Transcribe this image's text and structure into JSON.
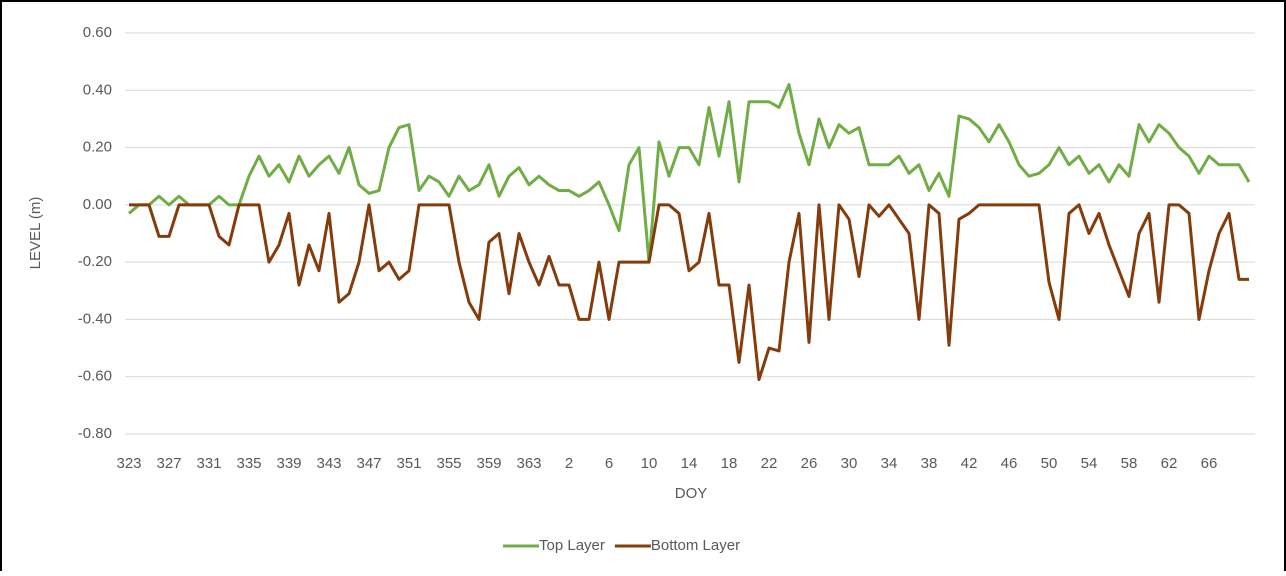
{
  "chart_data": {
    "type": "line",
    "x_label": "DOY",
    "y_label": "LEVEL (m)",
    "categories": [
      "323",
      null,
      null,
      null,
      "327",
      null,
      null,
      null,
      "331",
      null,
      null,
      null,
      "335",
      null,
      null,
      null,
      "339",
      null,
      null,
      null,
      "343",
      null,
      null,
      null,
      "347",
      null,
      null,
      null,
      "351",
      null,
      null,
      null,
      "355",
      null,
      null,
      null,
      "359",
      null,
      null,
      null,
      "363",
      null,
      null,
      null,
      "2",
      null,
      null,
      null,
      "6",
      null,
      null,
      null,
      "10",
      null,
      null,
      null,
      "14",
      null,
      null,
      null,
      "18",
      null,
      null,
      null,
      "22",
      null,
      null,
      null,
      "26",
      null,
      null,
      null,
      "30",
      null,
      null,
      null,
      "34",
      null,
      null,
      null,
      "38",
      null,
      null,
      null,
      "42",
      null,
      null,
      null,
      "46",
      null,
      null,
      null,
      "50",
      null,
      null,
      null,
      "54",
      null,
      null,
      null,
      "58",
      null,
      null,
      null,
      "62",
      null,
      null,
      null,
      "66",
      null,
      null,
      null,
      null
    ],
    "series": [
      {
        "name": "Top Layer",
        "color": "#70ad47",
        "values": [
          -0.03,
          0,
          0,
          0.03,
          0,
          0.03,
          0,
          0,
          0,
          0.03,
          0,
          0,
          0.1,
          0.17,
          0.1,
          0.14,
          0.08,
          0.17,
          0.1,
          0.14,
          0.17,
          0.11,
          0.2,
          0.07,
          0.04,
          0.05,
          0.2,
          0.27,
          0.28,
          0.05,
          0.1,
          0.08,
          0.03,
          0.1,
          0.05,
          0.07,
          0.14,
          0.03,
          0.1,
          0.13,
          0.07,
          0.1,
          0.07,
          0.05,
          0.05,
          0.03,
          0.05,
          0.08,
          0,
          -0.09,
          0.14,
          0.2,
          -0.2,
          0.22,
          0.1,
          0.2,
          0.2,
          0.14,
          0.34,
          0.17,
          0.36,
          0.08,
          0.36,
          0.36,
          0.36,
          0.34,
          0.42,
          0.25,
          0.14,
          0.3,
          0.2,
          0.28,
          0.25,
          0.27,
          0.14,
          0.14,
          0.14,
          0.17,
          0.11,
          0.14,
          0.05,
          0.11,
          0.03,
          0.31,
          0.3,
          0.27,
          0.22,
          0.28,
          0.22,
          0.14,
          0.1,
          0.11,
          0.14,
          0.2,
          0.14,
          0.17,
          0.11,
          0.14,
          0.08,
          0.14,
          0.1,
          0.28,
          0.22,
          0.28,
          0.25,
          0.2,
          0.17,
          0.11,
          0.17,
          0.14,
          0.14,
          0.14,
          0.08
        ]
      },
      {
        "name": "Bottom Layer",
        "color": "#843c0c",
        "values": [
          0,
          0,
          0,
          -0.11,
          -0.11,
          0,
          0,
          0,
          0,
          -0.11,
          -0.14,
          0,
          0,
          0,
          -0.2,
          -0.14,
          -0.03,
          -0.28,
          -0.14,
          -0.23,
          -0.03,
          -0.34,
          -0.31,
          -0.2,
          0,
          -0.23,
          -0.2,
          -0.26,
          -0.23,
          0,
          0,
          0,
          0,
          -0.2,
          -0.34,
          -0.4,
          -0.13,
          -0.1,
          -0.31,
          -0.1,
          -0.2,
          -0.28,
          -0.18,
          -0.28,
          -0.28,
          -0.4,
          -0.4,
          -0.2,
          -0.4,
          -0.2,
          -0.2,
          -0.2,
          -0.2,
          0,
          0,
          -0.03,
          -0.23,
          -0.2,
          -0.03,
          -0.28,
          -0.28,
          -0.55,
          -0.28,
          -0.61,
          -0.5,
          -0.51,
          -0.2,
          -0.03,
          -0.48,
          0,
          -0.4,
          0,
          -0.05,
          -0.25,
          0,
          -0.04,
          0,
          -0.05,
          -0.1,
          -0.4,
          0,
          -0.03,
          -0.49,
          -0.05,
          -0.03,
          0,
          0,
          0,
          0,
          0,
          0,
          0,
          -0.27,
          -0.4,
          -0.03,
          0,
          -0.1,
          -0.03,
          -0.14,
          -0.23,
          -0.32,
          -0.1,
          -0.03,
          -0.34,
          0,
          0,
          -0.03,
          -0.4,
          -0.23,
          -0.1,
          -0.03,
          -0.26,
          -0.26
        ]
      }
    ],
    "ylim": [
      -0.8,
      0.6
    ],
    "yticks": [
      {
        "value": -0.8,
        "label": "-0.80"
      },
      {
        "value": -0.6,
        "label": "-0.60"
      },
      {
        "value": -0.4,
        "label": "-0.40"
      },
      {
        "value": -0.2,
        "label": "-0.20"
      },
      {
        "value": 0,
        "label": "0.00"
      },
      {
        "value": 0.2,
        "label": "0.20"
      },
      {
        "value": 0.4,
        "label": "0.40"
      },
      {
        "value": 0.6,
        "label": "0.60"
      }
    ],
    "grid": true,
    "legend": "bottom"
  }
}
